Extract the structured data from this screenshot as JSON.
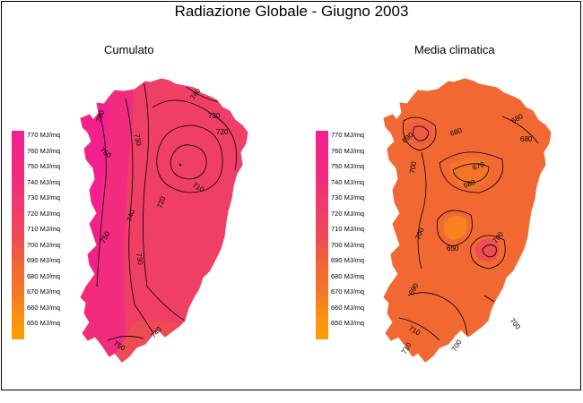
{
  "title": "Radiazione Globale - Giugno 2003",
  "panels": [
    {
      "title": "Cumulato"
    },
    {
      "title": "Media climatica"
    }
  ],
  "legend": {
    "items": [
      "770 MJ/mq",
      "760 MJ/mq",
      "750 MJ/mq",
      "740 MJ/mq",
      "730 MJ/mq",
      "720 MJ/mq",
      "710 MJ/mq",
      "700 MJ/mq",
      "690 MJ/mq",
      "680 MJ/mq",
      "670 MJ/mq",
      "660 MJ/mq",
      "650 MJ/mq"
    ],
    "colors": [
      "#f41f8f",
      "#f3218a",
      "#f22585",
      "#f12b7d",
      "#f03575",
      "#ef3f67",
      "#ee4c55",
      "#f05c43",
      "#f26833",
      "#f47428",
      "#f6831d",
      "#f89312",
      "#fba005"
    ]
  },
  "contour_labels": {
    "left": [
      "760",
      "740",
      "730",
      "720",
      "710",
      "720",
      "730",
      "740",
      "730",
      "740",
      "750",
      "740",
      "760",
      "750"
    ],
    "right": [
      "690",
      "680",
      "680",
      "680",
      "670",
      "700",
      "680",
      "700",
      "650",
      "700",
      "690",
      "700",
      "710",
      "700",
      "700",
      "710"
    ]
  },
  "colors": {
    "left_base": "#ef3f67",
    "left_high": "#f41f8f",
    "right_base": "#f26833",
    "right_low": "#f6831d"
  }
}
